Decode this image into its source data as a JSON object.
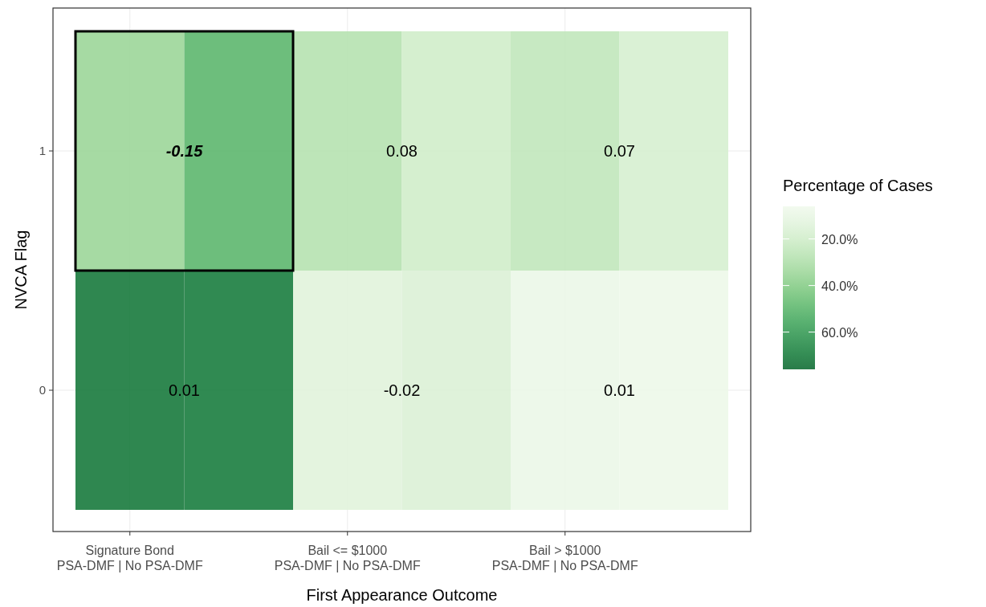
{
  "chart_data": {
    "type": "heatmap",
    "xlabel": "First Appearance Outcome",
    "ylabel": "NVCA Flag",
    "legend_title": "Percentage of Cases",
    "categories": [
      "Signature Bond\nPSA-DMF | No PSA-DMF",
      null,
      "Bail <= $1000\nPSA-DMF | No PSA-DMF",
      null,
      "Bail > $1000\nPSA-DMF | No PSA-DMF",
      null
    ],
    "y_categories": [
      "1",
      "0"
    ],
    "cells": [
      [
        35,
        50,
        28,
        20,
        25,
        18
      ],
      [
        72,
        71,
        14,
        16,
        9,
        8
      ]
    ],
    "annotations": [
      "-0.15",
      "0.08",
      "0.07",
      "0.01",
      "-0.02",
      "0.01"
    ],
    "clim": [
      6,
      76
    ],
    "cticks": [
      {
        "value": 20,
        "label": "20.0%"
      },
      {
        "value": 40,
        "label": "40.0%"
      },
      {
        "value": 60,
        "label": "60.0%"
      }
    ],
    "grid": true
  }
}
